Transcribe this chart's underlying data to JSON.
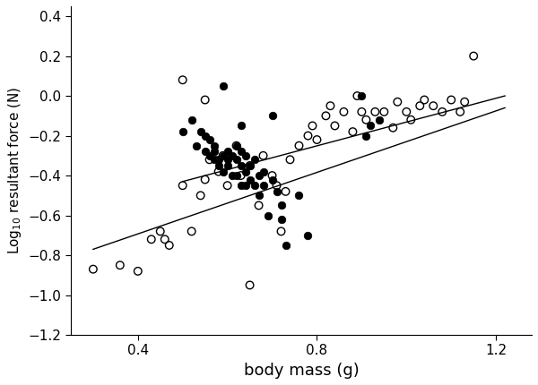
{
  "filled_x": [
    0.5,
    0.52,
    0.53,
    0.54,
    0.55,
    0.55,
    0.56,
    0.56,
    0.57,
    0.57,
    0.57,
    0.58,
    0.58,
    0.59,
    0.59,
    0.6,
    0.6,
    0.6,
    0.61,
    0.61,
    0.62,
    0.62,
    0.62,
    0.63,
    0.63,
    0.63,
    0.64,
    0.64,
    0.64,
    0.65,
    0.65,
    0.66,
    0.66,
    0.67,
    0.67,
    0.68,
    0.68,
    0.69,
    0.7,
    0.71,
    0.72,
    0.72,
    0.73,
    0.76,
    0.78,
    0.9,
    0.59,
    0.63,
    0.91,
    0.92,
    0.94,
    0.7
  ],
  "filled_y": [
    -0.18,
    -0.12,
    -0.25,
    -0.18,
    -0.28,
    -0.2,
    -0.3,
    -0.22,
    -0.32,
    -0.28,
    -0.25,
    -0.32,
    -0.35,
    -0.3,
    -0.38,
    -0.32,
    -0.28,
    -0.35,
    -0.3,
    -0.4,
    -0.25,
    -0.32,
    -0.4,
    -0.28,
    -0.35,
    -0.45,
    -0.3,
    -0.38,
    -0.45,
    -0.35,
    -0.42,
    -0.32,
    -0.45,
    -0.4,
    -0.5,
    -0.38,
    -0.45,
    -0.6,
    -0.42,
    -0.48,
    -0.55,
    -0.62,
    -0.75,
    -0.5,
    -0.7,
    0.0,
    0.05,
    -0.15,
    -0.2,
    -0.15,
    -0.12,
    -0.1
  ],
  "open_x": [
    0.3,
    0.36,
    0.4,
    0.43,
    0.45,
    0.46,
    0.47,
    0.5,
    0.52,
    0.54,
    0.55,
    0.56,
    0.58,
    0.59,
    0.6,
    0.62,
    0.63,
    0.65,
    0.67,
    0.68,
    0.7,
    0.71,
    0.73,
    0.74,
    0.76,
    0.78,
    0.79,
    0.8,
    0.82,
    0.83,
    0.84,
    0.86,
    0.88,
    0.89,
    0.9,
    0.91,
    0.93,
    0.95,
    0.97,
    0.98,
    1.0,
    1.01,
    1.03,
    1.04,
    1.06,
    1.08,
    1.1,
    1.12,
    1.13,
    1.15,
    0.5,
    0.55,
    0.65,
    0.72
  ],
  "open_y": [
    -0.87,
    -0.85,
    -0.88,
    -0.72,
    -0.68,
    -0.72,
    -0.75,
    -0.45,
    -0.68,
    -0.5,
    -0.42,
    -0.32,
    -0.38,
    -0.3,
    -0.45,
    -0.25,
    -0.4,
    -0.35,
    -0.55,
    -0.3,
    -0.4,
    -0.45,
    -0.48,
    -0.32,
    -0.25,
    -0.2,
    -0.15,
    -0.22,
    -0.1,
    -0.05,
    -0.15,
    -0.08,
    -0.18,
    0.0,
    -0.08,
    -0.12,
    -0.08,
    -0.08,
    -0.16,
    -0.03,
    -0.08,
    -0.12,
    -0.05,
    -0.02,
    -0.05,
    -0.08,
    -0.02,
    -0.08,
    -0.03,
    0.2,
    0.08,
    -0.02,
    -0.95,
    -0.68
  ],
  "line1_x": [
    0.3,
    1.22
  ],
  "line1_y": [
    -0.77,
    -0.06
  ],
  "line2_x": [
    0.5,
    1.22
  ],
  "line2_y": [
    -0.43,
    0.0
  ],
  "xlabel": "body mass (g)",
  "ylabel": "Log$_{10}$ resultant force (N)",
  "xlim": [
    0.25,
    1.28
  ],
  "ylim": [
    -1.2,
    0.45
  ],
  "xticks": [
    0.4,
    0.8,
    1.2
  ],
  "yticks": [
    -1.2,
    -1.0,
    -0.8,
    -0.6,
    -0.4,
    -0.2,
    0.0,
    0.2,
    0.4
  ],
  "marker_size": 38,
  "line_color": "#000000",
  "bg_color": "#ffffff"
}
